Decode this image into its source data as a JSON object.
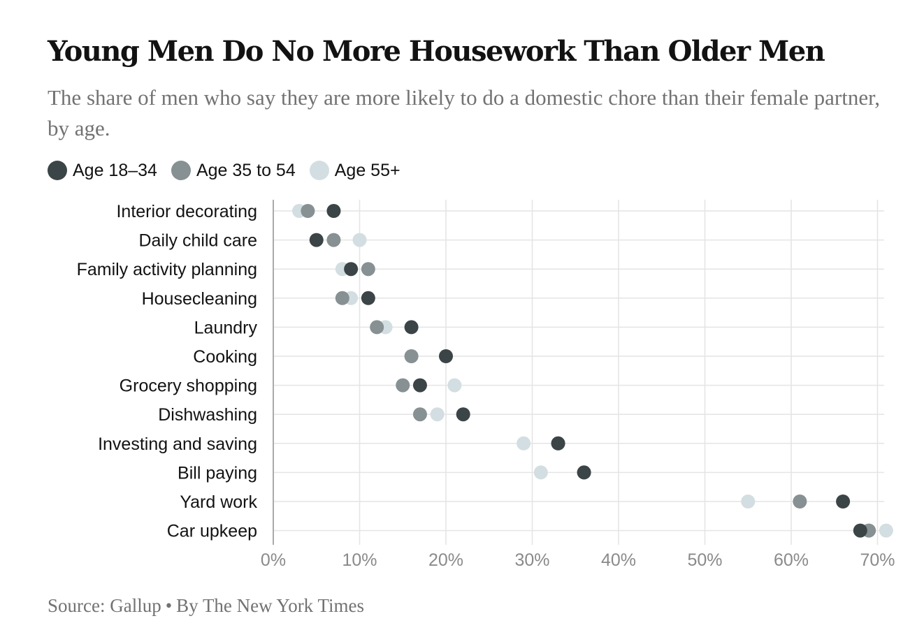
{
  "title": "Young Men Do No More Housework Than Older Men",
  "subtitle": "The share of men who say they are more likely to do a domestic chore than their female partner, by age.",
  "source": {
    "source_text": "Source:  Gallup",
    "separator": "•",
    "byline": "By The New York Times"
  },
  "colors": {
    "age_18_34": "#3b4446",
    "age_35_54": "#879092",
    "age_55_plus": "#d3dee2",
    "grid": "#e4e4e4",
    "axis": "#aaaaaa"
  },
  "chart_data": {
    "type": "scatter",
    "categories": [
      "Interior decorating",
      "Daily child care",
      "Family activity planning",
      "Housecleaning",
      "Laundry",
      "Cooking",
      "Grocery shopping",
      "Dishwashing",
      "Investing and saving",
      "Bill paying",
      "Yard work",
      "Car upkeep"
    ],
    "series": [
      {
        "name": "Age 18–34",
        "color": "#3b4446",
        "values": [
          7,
          5,
          9,
          11,
          16,
          20,
          17,
          22,
          33,
          36,
          66,
          68
        ]
      },
      {
        "name": "Age 35 to 54",
        "color": "#879092",
        "values": [
          4,
          7,
          11,
          8,
          12,
          16,
          15,
          17,
          33,
          36,
          61,
          69
        ]
      },
      {
        "name": "Age 55+",
        "color": "#d3dee2",
        "values": [
          3,
          10,
          8,
          9,
          13,
          16,
          21,
          19,
          29,
          31,
          55,
          71
        ]
      }
    ],
    "xlim": [
      0,
      70
    ],
    "xticks": [
      0,
      10,
      20,
      30,
      40,
      50,
      60,
      70
    ],
    "xtick_labels": [
      "0%",
      "10%",
      "20%",
      "30%",
      "40%",
      "50%",
      "60%",
      "70%"
    ],
    "grid": true,
    "legend_position": "top-left"
  }
}
